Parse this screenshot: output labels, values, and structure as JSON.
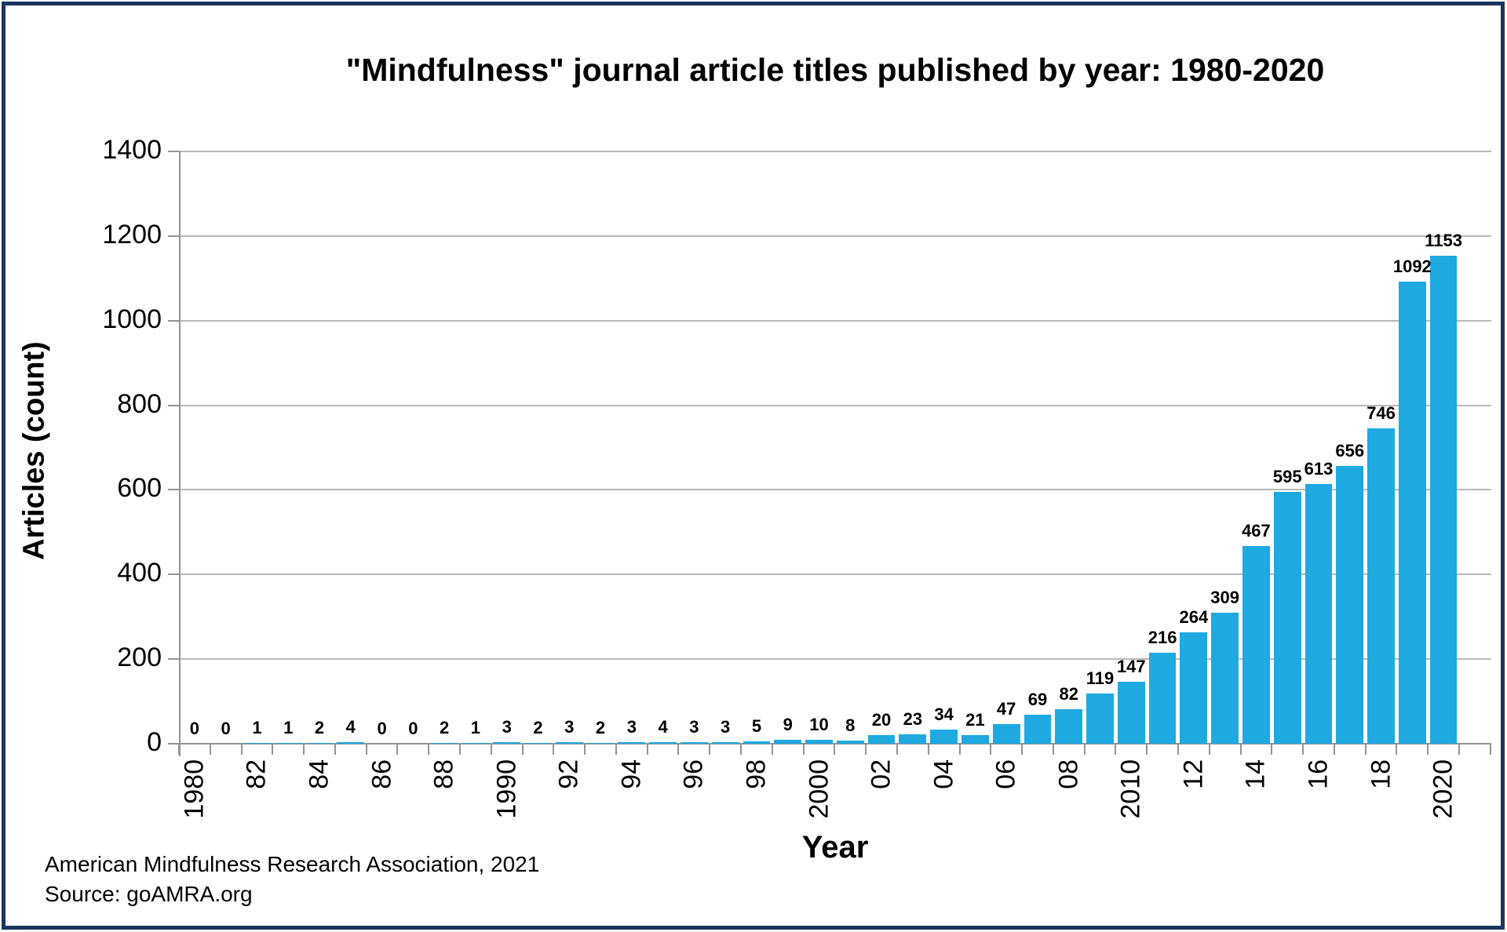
{
  "frame": {
    "border_color": "#1b355e",
    "background": "#ffffff"
  },
  "footer": {
    "line1": "American Mindfulness Research Association, 2021",
    "line2": "Source: goAMRA.org"
  },
  "chart_data": {
    "type": "bar",
    "title": "\"Mindfulness\" journal article titles published by year: 1980-2020",
    "xlabel": "Year",
    "ylabel": "Articles (count)",
    "ylim": [
      0,
      1400
    ],
    "yticks": [
      0,
      200,
      400,
      600,
      800,
      1000,
      1200,
      1400
    ],
    "grid": true,
    "legend": "none",
    "bar_color": "#1fa9e1",
    "gridline_color": "#b9b9b9",
    "axis_color": "#949494",
    "data_labels": true,
    "x": [
      1980,
      1981,
      1982,
      1983,
      1984,
      1985,
      1986,
      1987,
      1988,
      1989,
      1990,
      1991,
      1992,
      1993,
      1994,
      1995,
      1996,
      1997,
      1998,
      1999,
      2000,
      2001,
      2002,
      2003,
      2004,
      2005,
      2006,
      2007,
      2008,
      2009,
      2010,
      2011,
      2012,
      2013,
      2014,
      2015,
      2016,
      2017,
      2018,
      2019,
      2020
    ],
    "values": [
      0,
      0,
      1,
      1,
      2,
      4,
      0,
      0,
      2,
      1,
      3,
      2,
      3,
      2,
      3,
      4,
      3,
      3,
      5,
      9,
      10,
      8,
      20,
      23,
      34,
      21,
      47,
      69,
      82,
      119,
      147,
      216,
      264,
      309,
      467,
      595,
      613,
      656,
      746,
      1092,
      1153
    ],
    "xticks": [
      {
        "year": 1980,
        "label": "1980"
      },
      {
        "year": 1982,
        "label": "82"
      },
      {
        "year": 1984,
        "label": "84"
      },
      {
        "year": 1986,
        "label": "86"
      },
      {
        "year": 1988,
        "label": "88"
      },
      {
        "year": 1990,
        "label": "1990"
      },
      {
        "year": 1992,
        "label": "92"
      },
      {
        "year": 1994,
        "label": "94"
      },
      {
        "year": 1996,
        "label": "96"
      },
      {
        "year": 1998,
        "label": "98"
      },
      {
        "year": 2000,
        "label": "2000"
      },
      {
        "year": 2002,
        "label": "02"
      },
      {
        "year": 2004,
        "label": "04"
      },
      {
        "year": 2006,
        "label": "06"
      },
      {
        "year": 2008,
        "label": "08"
      },
      {
        "year": 2010,
        "label": "2010"
      },
      {
        "year": 2012,
        "label": "12"
      },
      {
        "year": 2014,
        "label": "14"
      },
      {
        "year": 2016,
        "label": "16"
      },
      {
        "year": 2018,
        "label": "18"
      },
      {
        "year": 2020,
        "label": "2020"
      }
    ]
  }
}
